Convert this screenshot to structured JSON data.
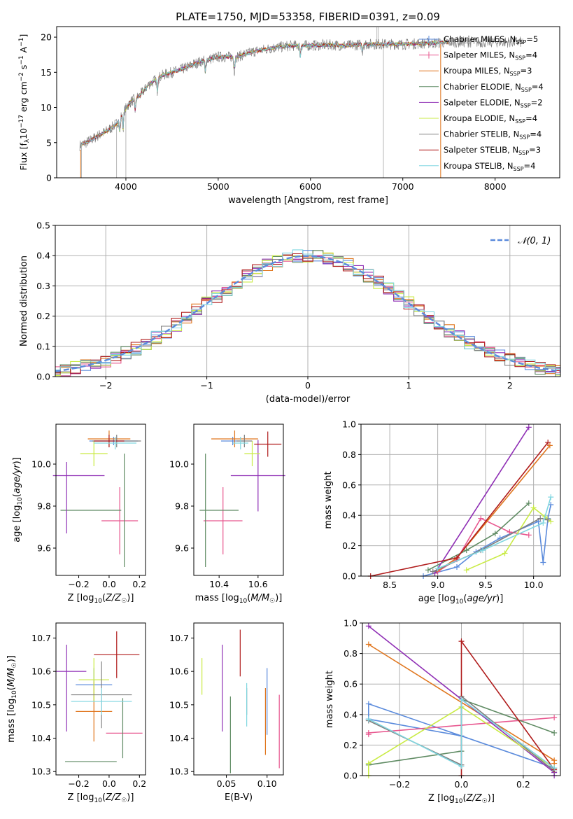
{
  "title": "PLATE=1750, MJD=53358, FIBERID=0391, z=0.09",
  "colors": {
    "chabrier_miles": "#5b8bdc",
    "salpeter_miles": "#e8578f",
    "kroupa_miles": "#e0761e",
    "chabrier_elodie": "#5f8b63",
    "salpeter_elodie": "#8f2fb5",
    "kroupa_elodie": "#c9eb44",
    "chabrier_stelib": "#7f7f7f",
    "salpeter_stelib": "#b01c1c",
    "kroupa_stelib": "#7fd6e0",
    "data": "#7a7a7a",
    "normal": "#5b8bdc"
  },
  "chart_data": [
    {
      "type": "line",
      "title": "PLATE=1750, MJD=53358, FIBERID=0391, z=0.09",
      "xlabel": "wavelength [Angstrom, rest frame]",
      "ylabel": "Flux [f_λ 10^-17 erg cm^-2 s^-1 A^-1]",
      "xlim": [
        3250,
        8700
      ],
      "ylim": [
        0,
        21.5
      ],
      "xticks": [
        "4000",
        "5000",
        "6000",
        "7000",
        "8000"
      ],
      "yticks": [
        "0",
        "5",
        "10",
        "15",
        "20"
      ],
      "grid": false,
      "legend_position": "upper-right",
      "spectrum_shape": [
        [
          3500,
          4.6
        ],
        [
          3600,
          5.2
        ],
        [
          3700,
          6.0
        ],
        [
          3800,
          6.7
        ],
        [
          3900,
          7.7
        ],
        [
          3970,
          9.3
        ],
        [
          4050,
          10.8
        ],
        [
          4150,
          11.7
        ],
        [
          4250,
          13.3
        ],
        [
          4400,
          14.6
        ],
        [
          4600,
          15.4
        ],
        [
          4800,
          16.5
        ],
        [
          5000,
          17.2
        ],
        [
          5200,
          17.2
        ],
        [
          5400,
          18.0
        ],
        [
          5600,
          18.5
        ],
        [
          5800,
          18.8
        ],
        [
          6000,
          18.8
        ],
        [
          6200,
          18.9
        ],
        [
          6400,
          18.8
        ],
        [
          6600,
          19.0
        ],
        [
          6800,
          19.0
        ],
        [
          7000,
          19.0
        ],
        [
          7200,
          19.1
        ],
        [
          7400,
          19.2
        ],
        [
          7500,
          19.3
        ]
      ],
      "series": [
        {
          "name": "Chabrier MILES",
          "nssp": "5",
          "marker": "+"
        },
        {
          "name": "Salpeter MILES",
          "nssp": "4",
          "marker": "+"
        },
        {
          "name": "Kroupa MILES",
          "nssp": "3",
          "marker": "-"
        },
        {
          "name": "Chabrier ELODIE",
          "nssp": "4",
          "marker": "-"
        },
        {
          "name": "Salpeter ELODIE",
          "nssp": "2",
          "marker": "-"
        },
        {
          "name": "Kroupa ELODIE",
          "nssp": "4",
          "marker": "-"
        },
        {
          "name": "Chabrier STELIB",
          "nssp": "4",
          "marker": "-"
        },
        {
          "name": "Salpeter STELIB",
          "nssp": "3",
          "marker": "-"
        },
        {
          "name": "Kroupa STELIB",
          "nssp": "4",
          "marker": "-"
        }
      ]
    },
    {
      "type": "histogram",
      "xlabel": "(data-model)/error",
      "ylabel": "Normed distribution",
      "xlim": [
        -2.5,
        2.5
      ],
      "ylim": [
        0,
        0.5
      ],
      "xticks": [
        "−2",
        "−1",
        "0",
        "1",
        "2"
      ],
      "yticks": [
        "0.0",
        "0.1",
        "0.2",
        "0.3",
        "0.4",
        "0.5"
      ],
      "grid": true,
      "legend": "𝒩(0, 1)",
      "legend_position": "upper-right",
      "bin_width": 0.1
    },
    {
      "type": "scatter",
      "xlabel": "Z [log10(Z/Z☉)]",
      "ylabel": "age [log10(age/yr)]",
      "xlim": [
        -0.35,
        0.24
      ],
      "ylim": [
        9.47,
        10.19
      ],
      "xticks": [
        "−0.2",
        "0.0",
        "0.2"
      ],
      "yticks": [
        "9.6",
        "9.8",
        "10.0"
      ],
      "points": [
        {
          "x": 0.03,
          "y": 10.11,
          "xerr": 0.16,
          "yerr": 0.02,
          "series": "chabrier_miles"
        },
        {
          "x": 0.07,
          "y": 9.73,
          "xerr": 0.12,
          "yerr": 0.16,
          "series": "salpeter_miles"
        },
        {
          "x": 0.0,
          "y": 10.12,
          "xerr": 0.14,
          "yerr": 0.04,
          "series": "kroupa_miles"
        },
        {
          "x": -0.12,
          "y": 9.78,
          "xerr": 0.2,
          "yerr": 0.0,
          "series": "chabrier_elodie"
        },
        {
          "x": 0.1,
          "y": 9.78,
          "xerr": 0.0,
          "yerr": 0.27,
          "series": "chabrier_elodie"
        },
        {
          "x": -0.28,
          "y": 9.84,
          "xerr": 0.0,
          "yerr": 0.17,
          "series": "salpeter_elodie"
        },
        {
          "x": -0.2,
          "y": 9.945,
          "xerr": 0.17,
          "yerr": 0.0,
          "series": "salpeter_elodie"
        },
        {
          "x": -0.1,
          "y": 10.05,
          "xerr": 0.09,
          "yerr": 0.06,
          "series": "kroupa_elodie"
        },
        {
          "x": 0.05,
          "y": 10.11,
          "xerr": 0.16,
          "yerr": 0.03,
          "series": "chabrier_stelib"
        },
        {
          "x": 0.0,
          "y": 10.11,
          "xerr": 0.1,
          "yerr": 0.03,
          "series": "salpeter_stelib"
        },
        {
          "x": 0.04,
          "y": 10.1,
          "xerr": 0.14,
          "yerr": 0.03,
          "series": "kroupa_stelib"
        }
      ]
    },
    {
      "type": "scatter",
      "xlabel": "mass [log10(M/M☉)]",
      "ylabel": "",
      "xlim": [
        10.27,
        10.73
      ],
      "ylim": [
        9.47,
        10.19
      ],
      "xticks": [
        "10.4",
        "10.6"
      ],
      "yticks": [
        "9.6",
        "9.8",
        "10.0"
      ],
      "points": [
        {
          "x": 10.47,
          "y": 10.11,
          "xerr": 0.06,
          "yerr": 0.02,
          "series": "chabrier_miles"
        },
        {
          "x": 10.42,
          "y": 9.73,
          "xerr": 0.1,
          "yerr": 0.16,
          "series": "salpeter_miles"
        },
        {
          "x": 10.48,
          "y": 10.12,
          "xerr": 0.12,
          "yerr": 0.04,
          "series": "kroupa_miles"
        },
        {
          "x": 10.33,
          "y": 9.78,
          "xerr": 0.0,
          "yerr": 0.27,
          "series": "chabrier_elodie"
        },
        {
          "x": 10.4,
          "y": 9.78,
          "xerr": 0.1,
          "yerr": 0.0,
          "series": "chabrier_elodie"
        },
        {
          "x": 10.6,
          "y": 9.945,
          "xerr": 0.14,
          "yerr": 0.17,
          "series": "salpeter_elodie"
        },
        {
          "x": 10.57,
          "y": 10.05,
          "xerr": 0.04,
          "yerr": 0.06,
          "series": "kroupa_elodie"
        },
        {
          "x": 10.53,
          "y": 10.11,
          "xerr": 0.04,
          "yerr": 0.03,
          "series": "chabrier_stelib"
        },
        {
          "x": 10.65,
          "y": 10.095,
          "xerr": 0.07,
          "yerr": 0.06,
          "series": "salpeter_stelib"
        },
        {
          "x": 10.51,
          "y": 10.1,
          "xerr": 0.04,
          "yerr": 0.03,
          "series": "kroupa_stelib"
        }
      ]
    },
    {
      "type": "line",
      "xlabel": "age [log10(age/yr)]",
      "ylabel": "mass weight",
      "xlim": [
        8.2,
        10.28
      ],
      "ylim": [
        0,
        1.0
      ],
      "xticks": [
        "8.5",
        "9.0",
        "9.5",
        "10.0"
      ],
      "yticks": [
        "0.0",
        "0.2",
        "0.4",
        "0.6",
        "0.8",
        "1.0"
      ],
      "grid": true,
      "series": [
        {
          "key": "chabrier_miles",
          "x": [
            8.85,
            9.2,
            9.4,
            9.65,
            10.05,
            10.1,
            10.15,
            10.18
          ],
          "y": [
            0.0,
            0.06,
            0.16,
            0.25,
            0.36,
            0.09,
            0.38,
            0.47
          ]
        },
        {
          "key": "salpeter_miles",
          "x": [
            9.0,
            9.2,
            9.45,
            9.75,
            9.95
          ],
          "y": [
            0.03,
            0.11,
            0.38,
            0.29,
            0.27
          ]
        },
        {
          "key": "kroupa_miles",
          "x": [
            8.97,
            9.2,
            10.17
          ],
          "y": [
            0.02,
            0.12,
            0.86
          ]
        },
        {
          "key": "chabrier_elodie",
          "x": [
            8.9,
            9.3,
            9.6,
            9.95
          ],
          "y": [
            0.04,
            0.17,
            0.28,
            0.48
          ]
        },
        {
          "key": "salpeter_elodie",
          "x": [
            8.97,
            9.95
          ],
          "y": [
            0.02,
            0.98
          ]
        },
        {
          "key": "kroupa_elodie",
          "x": [
            9.3,
            9.7,
            10.0,
            10.12,
            10.18
          ],
          "y": [
            0.04,
            0.15,
            0.45,
            0.39,
            0.36
          ]
        },
        {
          "key": "chabrier_stelib",
          "x": [
            8.95,
            9.45,
            10.07,
            10.15
          ],
          "y": [
            0.03,
            0.17,
            0.38,
            0.37
          ]
        },
        {
          "key": "salpeter_stelib",
          "x": [
            8.3,
            9.2,
            10.15
          ],
          "y": [
            0.0,
            0.12,
            0.88
          ]
        },
        {
          "key": "kroupa_stelib",
          "x": [
            9.0,
            9.47,
            10.1,
            10.18
          ],
          "y": [
            0.05,
            0.17,
            0.35,
            0.52
          ]
        }
      ]
    },
    {
      "type": "scatter",
      "xlabel": "Z [log10(Z/Z☉)]",
      "ylabel": "mass [log10(M/M☉)]",
      "xlim": [
        -0.35,
        0.24
      ],
      "ylim": [
        10.29,
        10.745
      ],
      "xticks": [
        "−0.2",
        "0.0",
        "0.2"
      ],
      "yticks": [
        "10.3",
        "10.4",
        "10.5",
        "10.6",
        "10.7"
      ],
      "points": [
        {
          "x": -0.1,
          "y": 10.56,
          "xerr": 0.12,
          "yerr": 0.05,
          "series": "chabrier_miles"
        },
        {
          "x": 0.1,
          "y": 10.415,
          "xerr": 0.12,
          "yerr": 0.0,
          "series": "salpeter_miles"
        },
        {
          "x": -0.1,
          "y": 10.48,
          "xerr": 0.12,
          "yerr": 0.09,
          "series": "kroupa_miles"
        },
        {
          "x": -0.12,
          "y": 10.33,
          "xerr": 0.17,
          "yerr": 0.0,
          "series": "chabrier_elodie"
        },
        {
          "x": 0.09,
          "y": 10.43,
          "xerr": 0.0,
          "yerr": 0.09,
          "series": "chabrier_elodie"
        },
        {
          "x": -0.28,
          "y": 10.55,
          "xerr": 0.0,
          "yerr": 0.13,
          "series": "salpeter_elodie"
        },
        {
          "x": -0.25,
          "y": 10.6,
          "xerr": 0.1,
          "yerr": 0.0,
          "series": "salpeter_elodie"
        },
        {
          "x": -0.1,
          "y": 10.575,
          "xerr": 0.1,
          "yerr": 0.065,
          "series": "kroupa_elodie"
        },
        {
          "x": -0.05,
          "y": 10.53,
          "xerr": 0.2,
          "yerr": 0.1,
          "series": "chabrier_stelib"
        },
        {
          "x": 0.05,
          "y": 10.65,
          "xerr": 0.15,
          "yerr": 0.07,
          "series": "salpeter_stelib"
        },
        {
          "x": -0.05,
          "y": 10.51,
          "xerr": 0.2,
          "yerr": 0.04,
          "series": "kroupa_stelib"
        }
      ]
    },
    {
      "type": "scatter",
      "xlabel": "E(B-V)",
      "ylabel": "",
      "xlim": [
        0.01,
        0.12
      ],
      "ylim": [
        10.29,
        10.745
      ],
      "xticks": [
        "0.05",
        "0.10"
      ],
      "yticks": [
        "10.3",
        "10.4",
        "10.5",
        "10.6",
        "10.7"
      ],
      "points": [
        {
          "x": 0.1,
          "y": 10.51,
          "xerr": 0.0,
          "yerr": 0.1,
          "series": "chabrier_miles"
        },
        {
          "x": 0.115,
          "y": 10.42,
          "xerr": 0.0,
          "yerr": 0.11,
          "series": "salpeter_miles"
        },
        {
          "x": 0.098,
          "y": 10.45,
          "xerr": 0.0,
          "yerr": 0.1,
          "series": "kroupa_miles"
        },
        {
          "x": 0.055,
          "y": 10.41,
          "xerr": 0.0,
          "yerr": 0.115,
          "series": "chabrier_elodie"
        },
        {
          "x": 0.045,
          "y": 10.55,
          "xerr": 0.0,
          "yerr": 0.13,
          "series": "salpeter_elodie"
        },
        {
          "x": 0.02,
          "y": 10.585,
          "xerr": 0.0,
          "yerr": 0.055,
          "series": "kroupa_elodie"
        },
        {
          "x": 0.075,
          "y": 10.51,
          "xerr": 0.0,
          "yerr": 0.04,
          "series": "chabrier_stelib"
        },
        {
          "x": 0.067,
          "y": 10.655,
          "xerr": 0.0,
          "yerr": 0.07,
          "series": "salpeter_stelib"
        },
        {
          "x": 0.075,
          "y": 10.5,
          "xerr": 0.0,
          "yerr": 0.065,
          "series": "kroupa_stelib"
        }
      ]
    },
    {
      "type": "line",
      "xlabel": "Z [log10(Z/Z☉)]",
      "ylabel": "mass weight",
      "xlim": [
        -0.32,
        0.32
      ],
      "ylim": [
        0,
        1.0
      ],
      "xticks": [
        "−0.2",
        "0.0",
        "0.2"
      ],
      "yticks": [
        "0.0",
        "0.2",
        "0.4",
        "0.6",
        "0.8",
        "1.0"
      ],
      "grid": true,
      "series": [
        {
          "key": "chabrier_miles",
          "x": [
            -0.3,
            -0.3,
            0.3,
            0.0,
            -0.3
          ],
          "y": [
            0.37,
            0.47,
            0.05,
            0.26,
            0.37
          ]
        },
        {
          "key": "salpeter_miles",
          "x": [
            -0.3,
            -0.3,
            0.3
          ],
          "y": [
            0.27,
            0.28,
            0.38
          ]
        },
        {
          "key": "kroupa_miles",
          "x": [
            -0.3,
            0.3,
            0.3
          ],
          "y": [
            0.86,
            0.1,
            0.08
          ]
        },
        {
          "key": "chabrier_elodie",
          "x": [
            -0.3,
            0.0,
            0.0,
            0.3
          ],
          "y": [
            0.07,
            0.16,
            0.5,
            0.28
          ]
        },
        {
          "key": "salpeter_elodie",
          "x": [
            -0.3,
            0.3,
            0.3
          ],
          "y": [
            0.98,
            0.02,
            0.0
          ]
        },
        {
          "key": "kroupa_elodie",
          "x": [
            -0.3,
            -0.3,
            0.0,
            0.3
          ],
          "y": [
            0.0,
            0.08,
            0.45,
            0.05
          ]
        },
        {
          "key": "chabrier_stelib",
          "x": [
            -0.3,
            0.0,
            0.0,
            0.3
          ],
          "y": [
            0.36,
            0.07,
            0.52,
            0.03
          ]
        },
        {
          "key": "salpeter_stelib",
          "x": [
            0.0,
            0.0,
            0.3
          ],
          "y": [
            0.0,
            0.88,
            0.04
          ]
        },
        {
          "key": "kroupa_stelib",
          "x": [
            -0.3,
            0.0,
            0.0,
            0.3
          ],
          "y": [
            0.37,
            0.06,
            0.5,
            0.05
          ]
        }
      ]
    }
  ]
}
